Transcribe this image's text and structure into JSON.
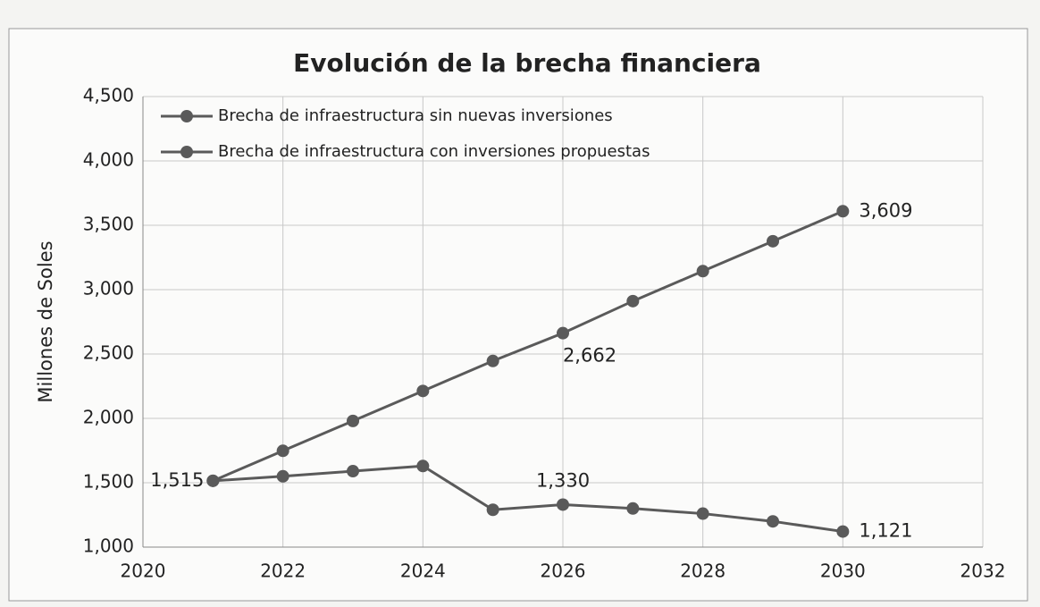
{
  "chart_data": {
    "type": "line",
    "title": "Evolución de la brecha financiera",
    "y_label": "Millones de Soles",
    "x": [
      2021,
      2022,
      2023,
      2024,
      2025,
      2026,
      2027,
      2028,
      2029,
      2030
    ],
    "series": [
      {
        "name": "Brecha de infraestructura sin nuevas inversiones",
        "color": "#5a5a5a",
        "values": [
          1515,
          1748,
          1980,
          2213,
          2446,
          2662,
          2911,
          3144,
          3376,
          3609
        ],
        "value_labels": [
          "1,515",
          null,
          null,
          null,
          null,
          "2,662",
          null,
          null,
          null,
          "3,609"
        ]
      },
      {
        "name": "Brecha de infraestructura con inversiones propuestas",
        "color": "#5a5a5a",
        "values": [
          1515,
          1550,
          1590,
          1630,
          1290,
          1330,
          1300,
          1260,
          1200,
          1121
        ],
        "value_labels": [
          null,
          null,
          null,
          null,
          null,
          "1,330",
          null,
          null,
          null,
          "1,121"
        ]
      }
    ],
    "xlim": [
      2020,
      2032
    ],
    "xticks": [
      2020,
      2022,
      2024,
      2026,
      2028,
      2030,
      2032
    ],
    "ylim": [
      1000,
      4500
    ],
    "yticks": [
      {
        "value": 1000,
        "label": "1,000"
      },
      {
        "value": 1500,
        "label": "1,500"
      },
      {
        "value": 2000,
        "label": "2,000"
      },
      {
        "value": 2500,
        "label": "2,500"
      },
      {
        "value": 3000,
        "label": "3,000"
      },
      {
        "value": 3500,
        "label": "3,500"
      },
      {
        "value": 4000,
        "label": "4,000"
      },
      {
        "value": 4500,
        "label": "4,500"
      }
    ],
    "grid": true,
    "legend": "top-left"
  }
}
